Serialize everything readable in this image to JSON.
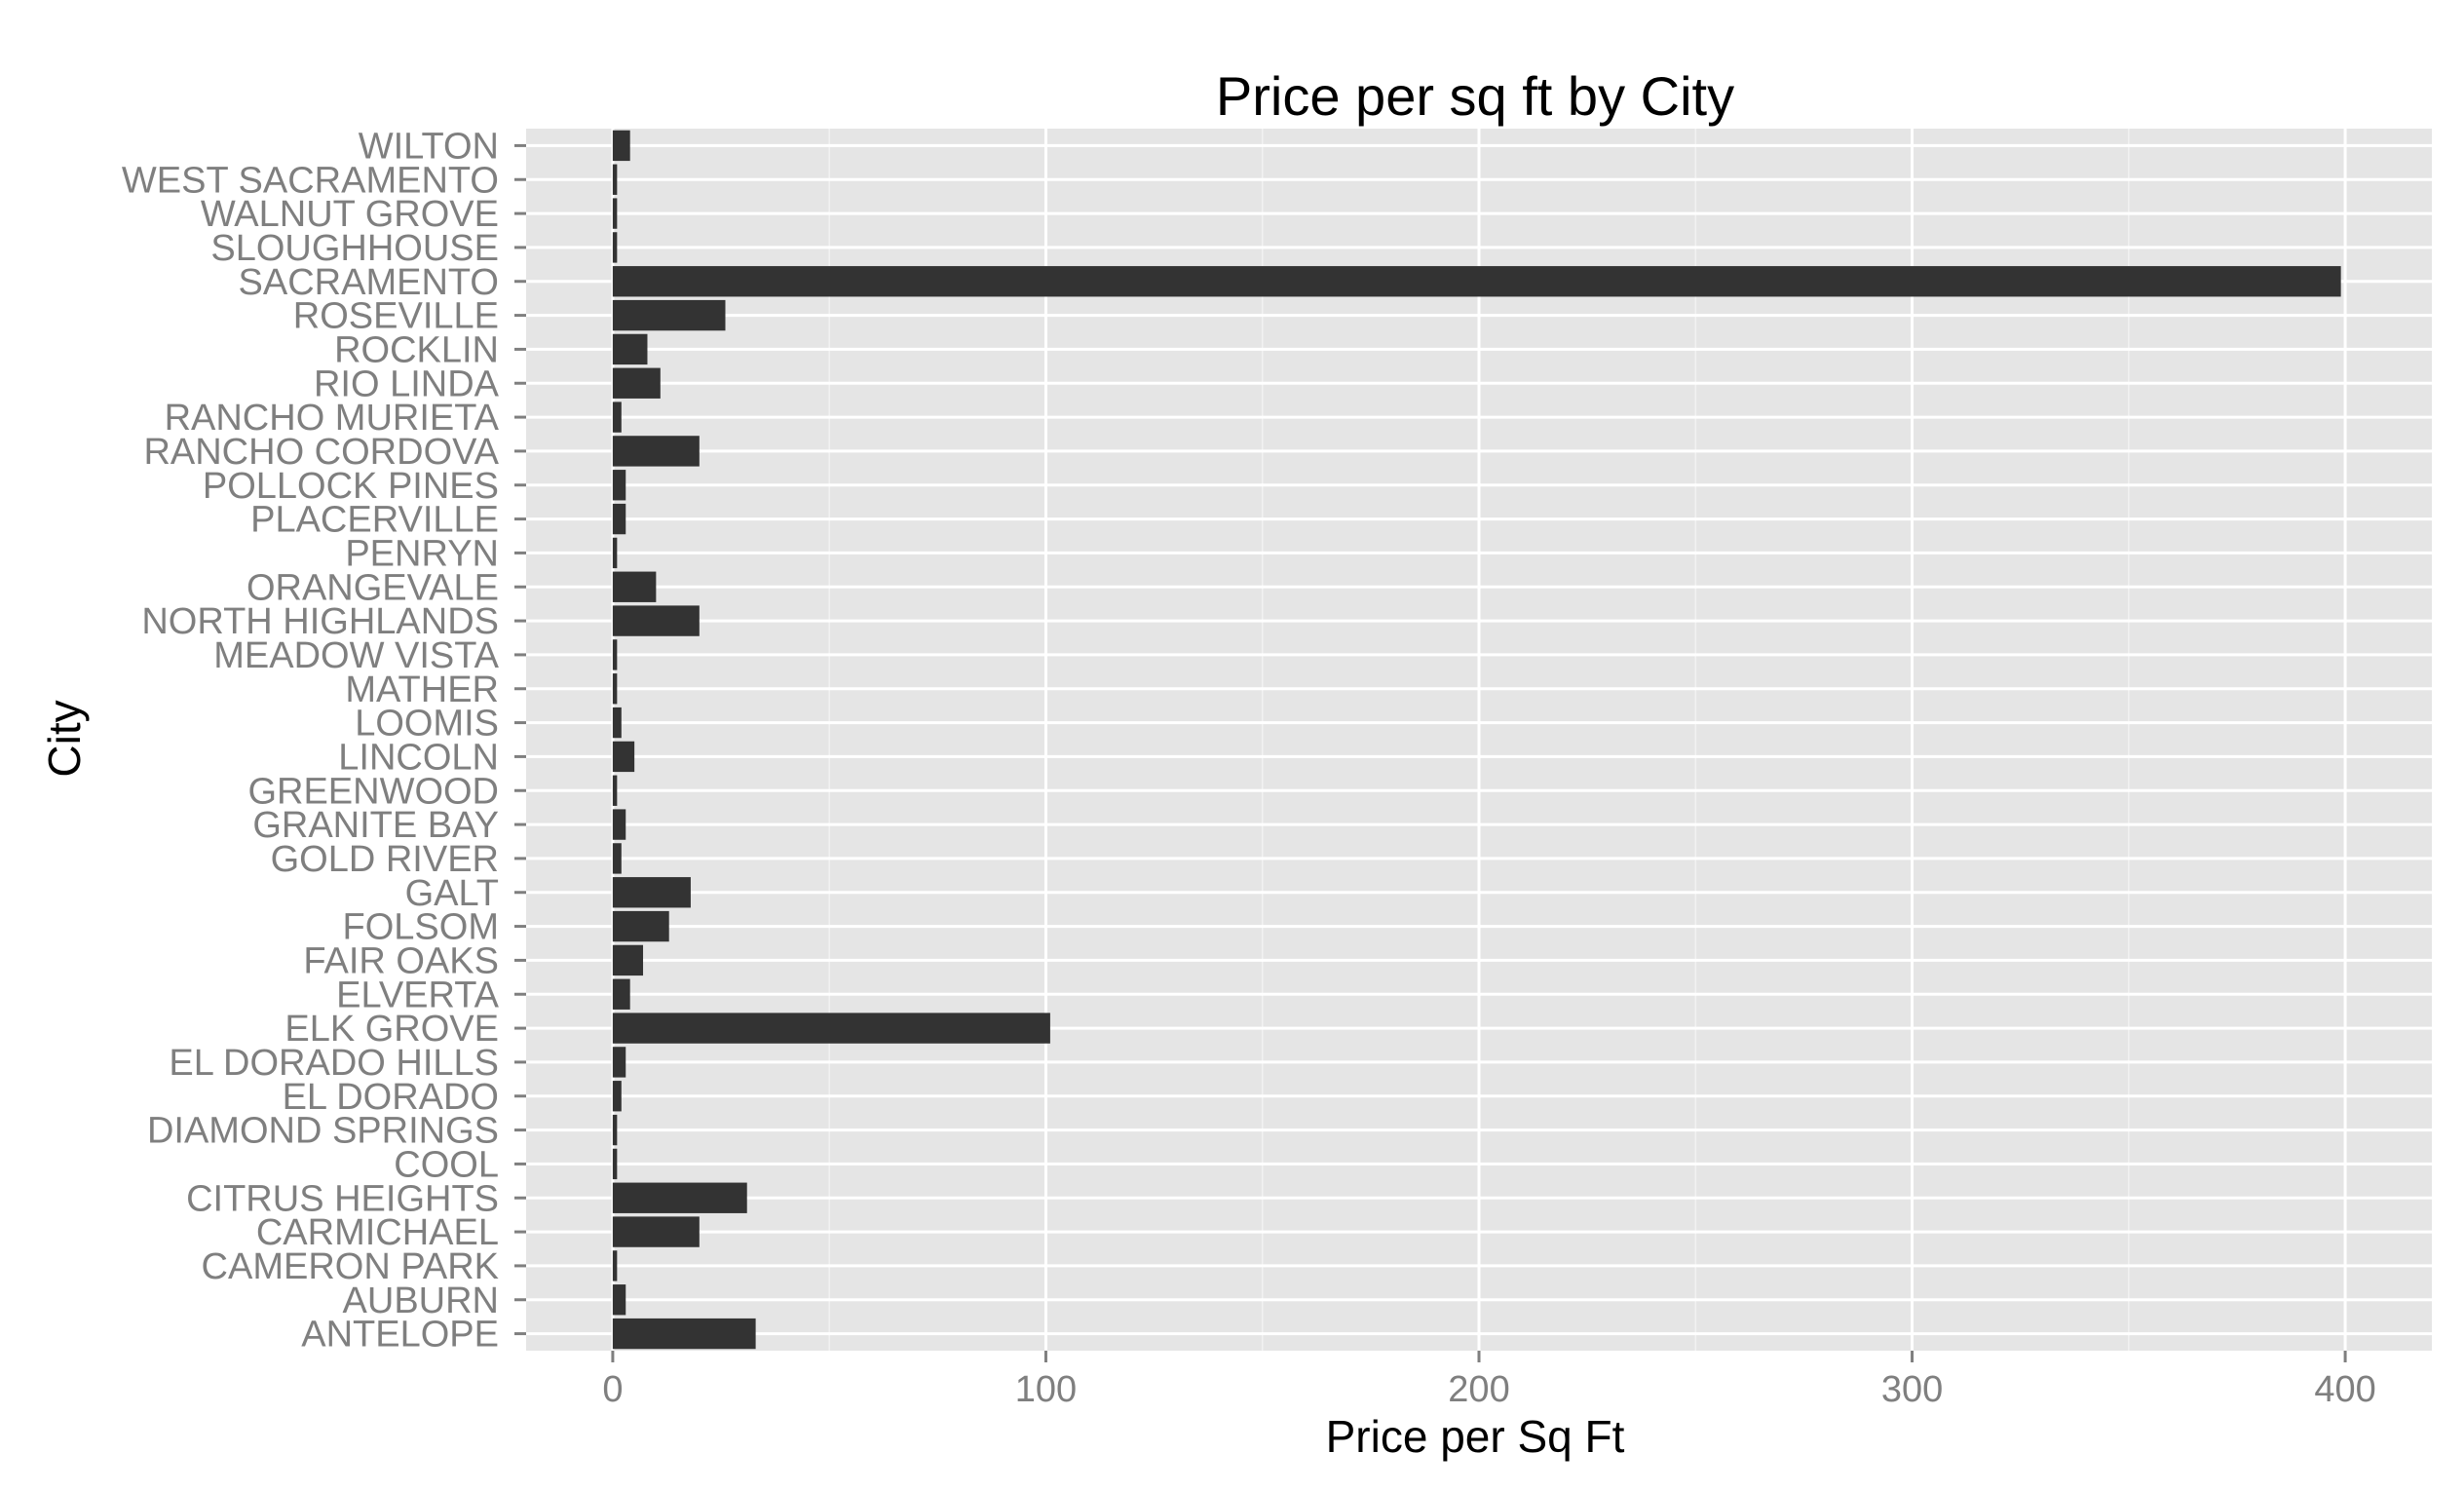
{
  "chart_data": {
    "type": "bar",
    "orientation": "horizontal",
    "title": "Price per sq ft by City",
    "xlabel": "Price per Sq Ft",
    "ylabel": "City",
    "xlim": [
      -20,
      420
    ],
    "xticks": [
      0,
      100,
      200,
      300,
      400
    ],
    "grid": true,
    "legend": "none",
    "categories": [
      "ANTELOPE",
      "AUBURN",
      "CAMERON PARK",
      "CARMICHAEL",
      "CITRUS HEIGHTS",
      "COOL",
      "DIAMOND SPRINGS",
      "EL DORADO",
      "EL DORADO HILLS",
      "ELK GROVE",
      "ELVERTA",
      "FAIR OAKS",
      "FOLSOM",
      "GALT",
      "GOLD RIVER",
      "GRANITE BAY",
      "GREENWOOD",
      "LINCOLN",
      "LOOMIS",
      "MATHER",
      "MEADOW VISTA",
      "NORTH HIGHLANDS",
      "ORANGEVALE",
      "PENRYN",
      "PLACERVILLE",
      "POLLOCK PINES",
      "RANCHO CORDOVA",
      "RANCHO MURIETA",
      "RIO LINDA",
      "ROCKLIN",
      "ROSEVILLE",
      "SACRAMENTO",
      "SLOUGHHOUSE",
      "WALNUT GROVE",
      "WEST SACRAMENTO",
      "WILTON"
    ],
    "values": [
      33,
      3,
      1,
      20,
      31,
      1,
      1,
      2,
      3,
      101,
      4,
      7,
      13,
      18,
      2,
      3,
      1,
      5,
      2,
      1,
      1,
      20,
      10,
      1,
      3,
      3,
      20,
      2,
      11,
      8,
      26,
      399,
      1,
      1,
      1,
      4
    ],
    "colors": {
      "panel_background": "#e5e5e5",
      "grid_major": "#ffffff",
      "grid_minor": "#f2f2f2",
      "bar_fill": "#333333",
      "tick_text": "#7f7f7f",
      "tick_mark": "#7f7f7f",
      "title_text": "#000000"
    }
  }
}
